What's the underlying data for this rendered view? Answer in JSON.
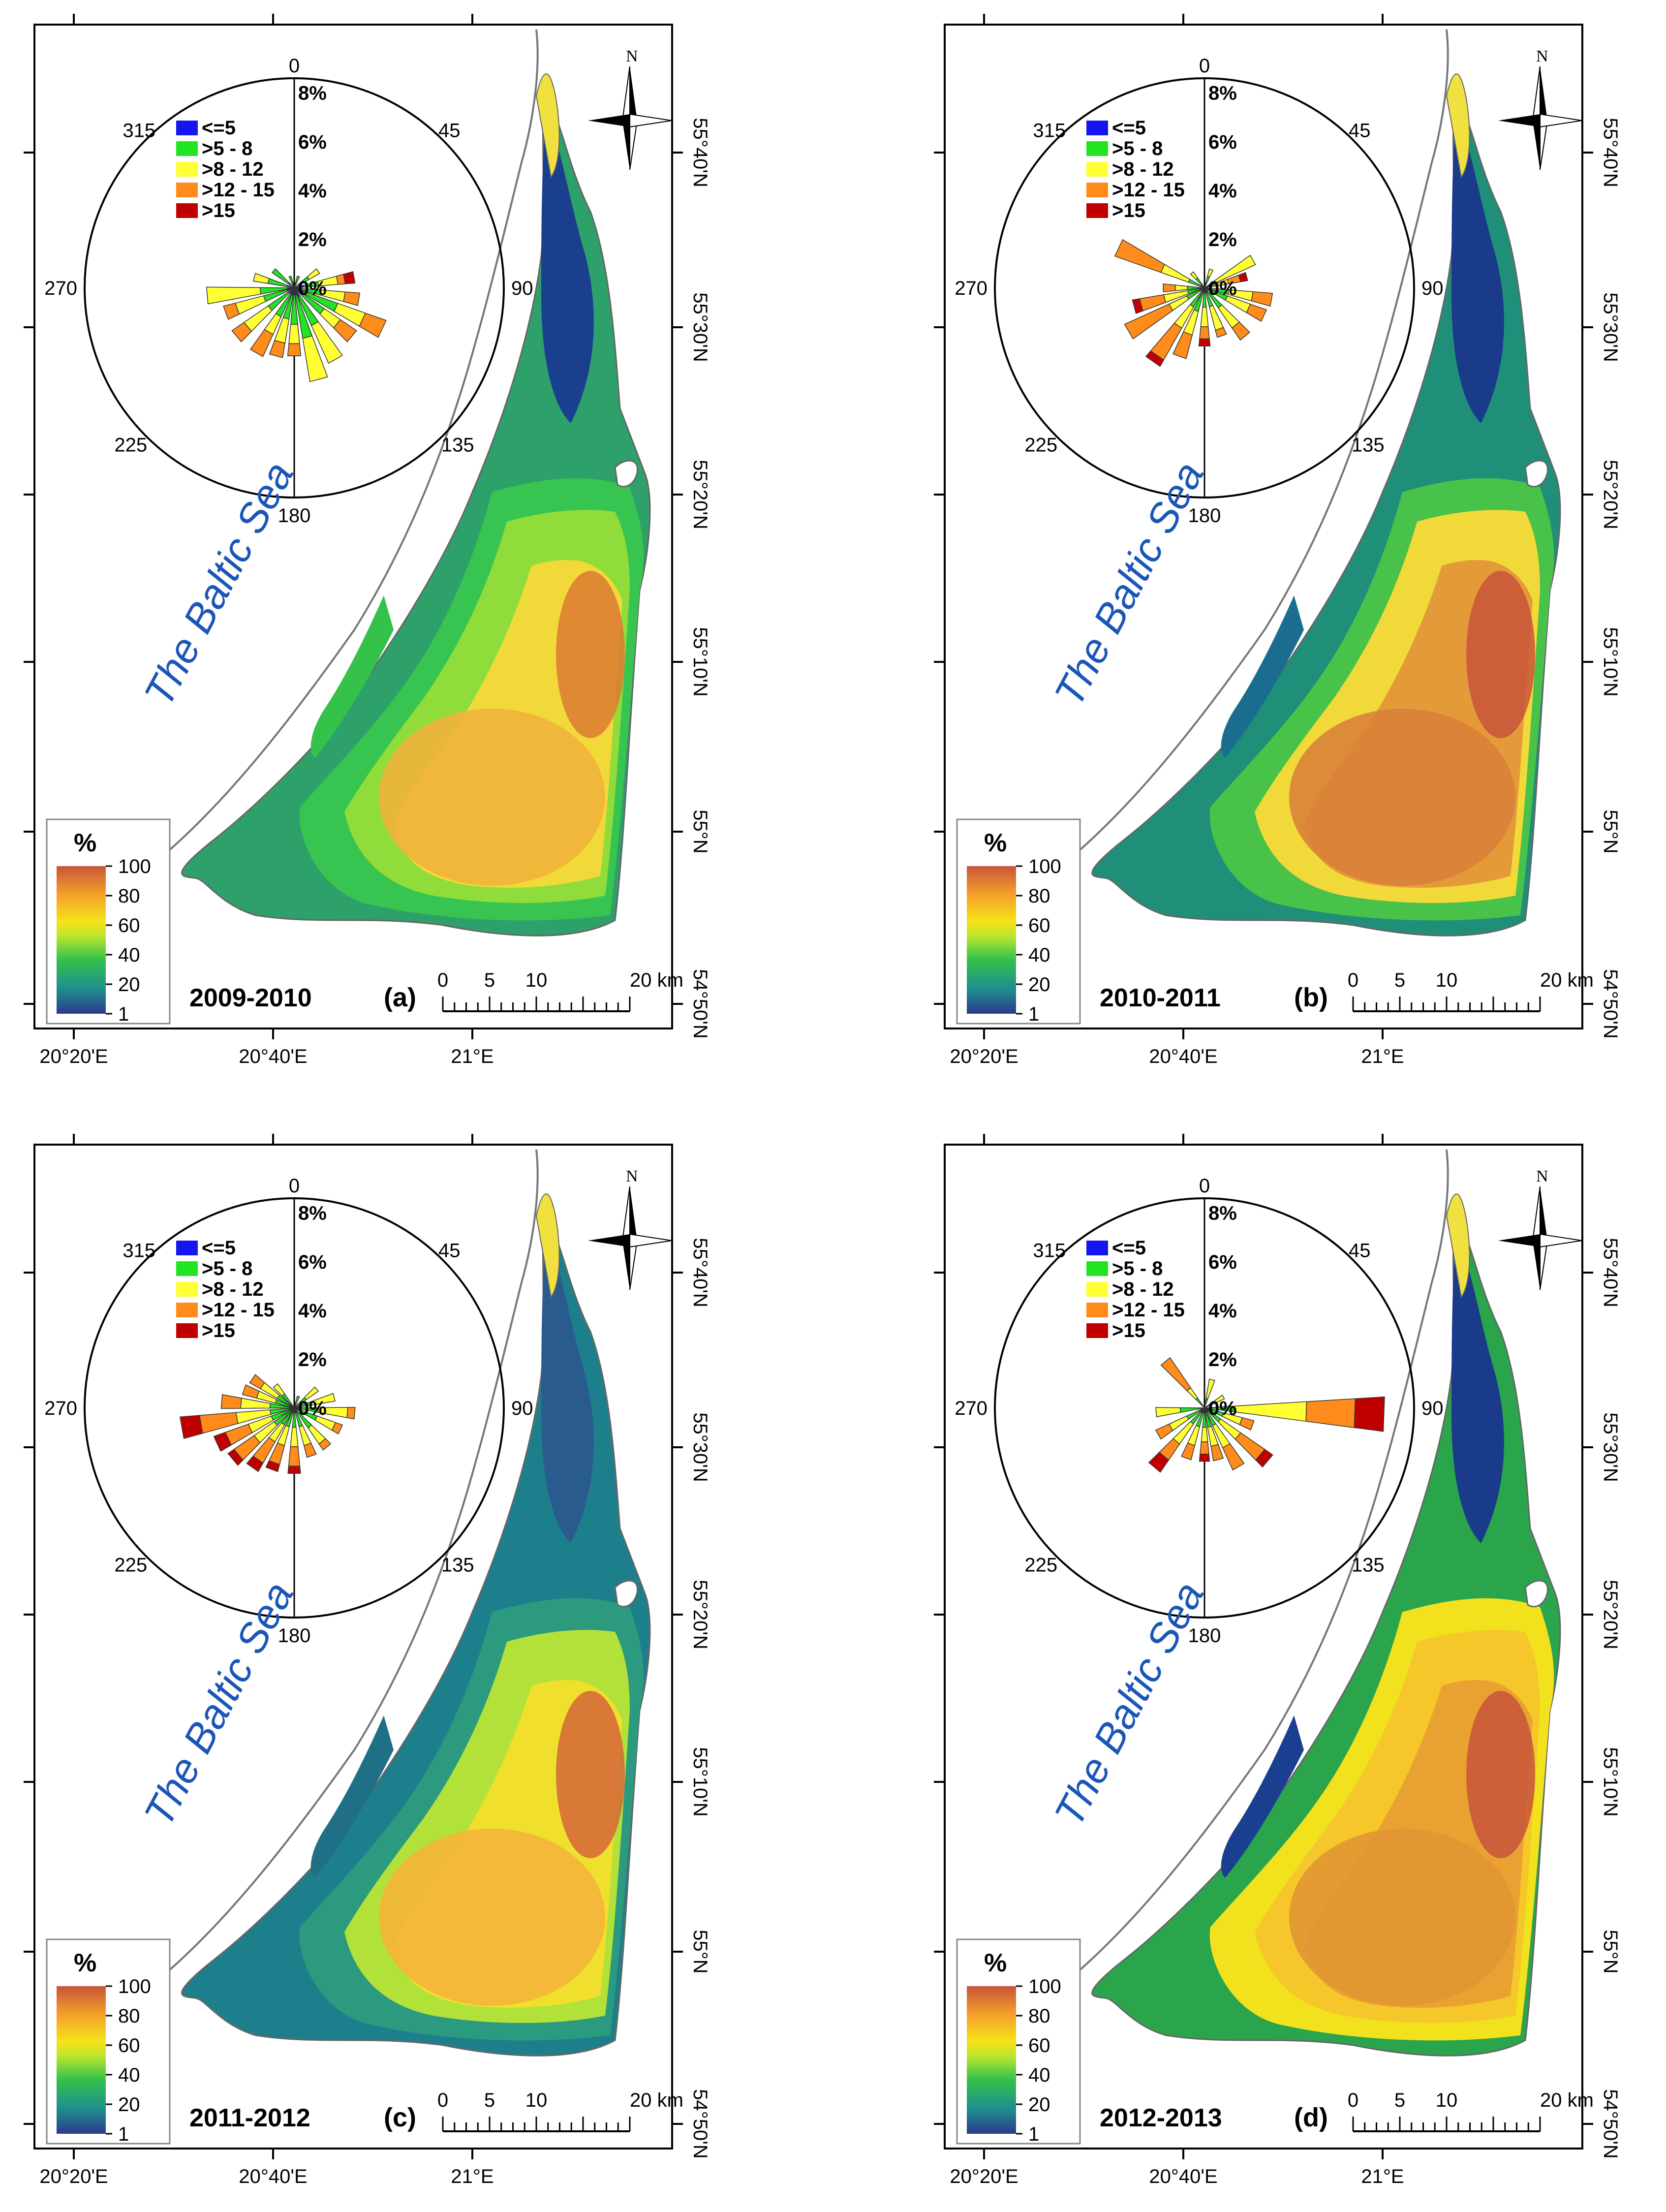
{
  "figure": {
    "sea_label": "The Baltic Sea",
    "legend": {
      "title": "%",
      "ticks": [
        "100",
        "80",
        "60",
        "40",
        "20",
        "1"
      ],
      "colors": [
        "#2b3a8c",
        "#1e8f8e",
        "#35c24a",
        "#7fe03a",
        "#f5e31a",
        "#f5a329",
        "#c8553a"
      ]
    },
    "scalebar": {
      "labels": [
        "0",
        "5",
        "10",
        "20 km"
      ]
    },
    "lon_labels": [
      "20°20'E",
      "20°40'E",
      "21°E"
    ],
    "lat_labels": [
      "55°40'N",
      "55°30'N",
      "55°20'N",
      "55°10'N",
      "55°N",
      "54°50'N"
    ],
    "north_label": "N",
    "rose_dir_labels": [
      "0",
      "45",
      "90",
      "135",
      "180",
      "225",
      "270",
      "315"
    ],
    "rose_pct_labels": [
      "8%",
      "6%",
      "4%",
      "2%",
      "0%"
    ],
    "wind_classes": [
      {
        "label": "<=5",
        "color": "#1515f0"
      },
      {
        "label": ">5 - 8",
        "color": "#22e422"
      },
      {
        "label": ">8 - 12",
        "color": "#ffff33"
      },
      {
        "label": ">12 - 15",
        "color": "#ff8c1a"
      },
      {
        "label": ">15",
        "color": "#c00000"
      }
    ]
  },
  "panels": [
    {
      "period": "2009-2010",
      "tag": "(a)"
    },
    {
      "period": "2010-2011",
      "tag": "(b)"
    },
    {
      "period": "2011-2012",
      "tag": "(c)"
    },
    {
      "period": "2012-2013",
      "tag": "(d)"
    }
  ]
}
